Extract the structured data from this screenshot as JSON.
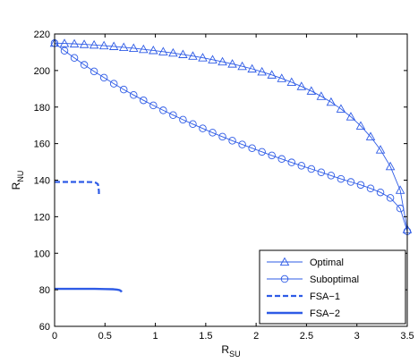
{
  "chart_data": {
    "type": "line",
    "xlabel": {
      "main": "R",
      "sub": "SU"
    },
    "ylabel": {
      "main": "R",
      "sub": "NU"
    },
    "xlim": [
      0,
      3.5
    ],
    "ylim": [
      60,
      220
    ],
    "xticks": [
      0,
      0.5,
      1,
      1.5,
      2,
      2.5,
      3,
      3.5
    ],
    "xtick_labels": [
      "0",
      "0.5",
      "1",
      "1.5",
      "2",
      "2.5",
      "3",
      "3.5"
    ],
    "yticks": [
      60,
      80,
      100,
      120,
      140,
      160,
      180,
      200,
      220
    ],
    "ytick_labels": [
      "60",
      "80",
      "100",
      "120",
      "140",
      "160",
      "180",
      "200",
      "220"
    ],
    "grid": false,
    "legend_position": "bottom-right",
    "line_color": "#2E5BE6",
    "series": [
      {
        "name": "Optimal",
        "marker": "triangle",
        "style": "solid",
        "x": [
          0,
          0.098,
          0.196,
          0.294,
          0.392,
          0.49,
          0.588,
          0.686,
          0.784,
          0.882,
          0.98,
          1.078,
          1.176,
          1.274,
          1.372,
          1.47,
          1.568,
          1.666,
          1.764,
          1.862,
          1.96,
          2.058,
          2.156,
          2.254,
          2.352,
          2.45,
          2.548,
          2.646,
          2.744,
          2.842,
          2.94,
          3.038,
          3.136,
          3.234,
          3.332,
          3.43,
          3.5
        ],
        "y": [
          215,
          214.8,
          214.6,
          214.3,
          214,
          213.6,
          213.2,
          212.7,
          212.2,
          211.6,
          211,
          210.3,
          209.6,
          208.8,
          207.9,
          207,
          205.9,
          204.8,
          203.6,
          202.3,
          200.9,
          199.3,
          197.6,
          195.7,
          193.6,
          191.3,
          188.8,
          185.9,
          182.7,
          179,
          174.7,
          169.7,
          163.8,
          156.6,
          147.5,
          134.5,
          113
        ]
      },
      {
        "name": "Suboptimal",
        "marker": "circle",
        "style": "solid",
        "x": [
          0,
          0.098,
          0.196,
          0.294,
          0.392,
          0.49,
          0.588,
          0.686,
          0.784,
          0.882,
          0.98,
          1.078,
          1.176,
          1.274,
          1.372,
          1.47,
          1.568,
          1.666,
          1.764,
          1.862,
          1.96,
          2.058,
          2.156,
          2.254,
          2.352,
          2.45,
          2.548,
          2.646,
          2.744,
          2.842,
          2.94,
          3.038,
          3.136,
          3.234,
          3.332,
          3.43,
          3.5
        ],
        "y": [
          215,
          210.8,
          206.9,
          203.1,
          199.5,
          196.1,
          192.8,
          189.6,
          186.6,
          183.7,
          180.9,
          178.2,
          175.6,
          173.1,
          170.7,
          168.3,
          166,
          163.8,
          161.6,
          159.5,
          157.5,
          155.5,
          153.5,
          151.6,
          149.7,
          147.9,
          146.1,
          144.3,
          142.5,
          140.7,
          139,
          137.4,
          135.5,
          133.3,
          130.3,
          124.5,
          112
        ]
      },
      {
        "name": "FSA−1",
        "marker": "none",
        "style": "dashed",
        "x": [
          0,
          0.1,
          0.2,
          0.3,
          0.37,
          0.41,
          0.43,
          0.435,
          0.44,
          0.44
        ],
        "y": [
          139,
          139,
          139,
          139,
          138.9,
          138.6,
          137.8,
          136,
          134,
          131
        ]
      },
      {
        "name": "FSA−2",
        "marker": "none",
        "style": "solid",
        "x": [
          0,
          0.1,
          0.2,
          0.3,
          0.4,
          0.5,
          0.58,
          0.62,
          0.645,
          0.66,
          0.665
        ],
        "y": [
          80.5,
          80.5,
          80.5,
          80.5,
          80.5,
          80.4,
          80.3,
          80.1,
          79.8,
          79.3,
          78.8
        ]
      }
    ]
  }
}
